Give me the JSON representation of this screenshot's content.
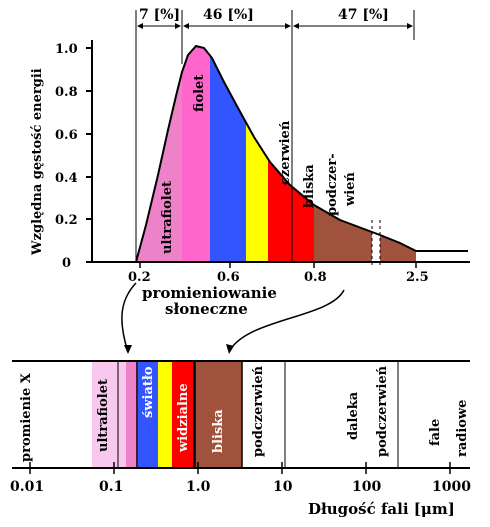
{
  "top_chart": {
    "ylabel": "Względna gęstość energii",
    "y_ticks": [
      "0",
      "0.2",
      "0.4",
      "0.6",
      "0.8",
      "1.0"
    ],
    "x_ticks": [
      "0.2",
      "0.6",
      "0.8",
      "2.5"
    ],
    "percent_labels": [
      "7 [%]",
      "46 [%]",
      "47 [%]"
    ],
    "band_labels": {
      "ultraviolet": "ultrafiolet",
      "violet": "fiolet",
      "red": "czerwień",
      "near": "bliska",
      "infrared_1": "podczer-",
      "infrared_2": "wień"
    },
    "colors": {
      "ultraviolet": "#ee82c8",
      "violet": "#ff66cc",
      "blue": "#3355ff",
      "yellow": "#ffff00",
      "red": "#ff0000",
      "brown": "#a0523d",
      "grey": "#c8c8c8"
    }
  },
  "caption_line1": "promieniowanie",
  "caption_line2": "słoneczne",
  "spectrum": {
    "x_ticks": [
      "0.01",
      "0.1",
      "1.0",
      "10",
      "100",
      "1000"
    ],
    "band_labels": {
      "xray": "promienie X",
      "ultraviolet": "ultrafiolet",
      "light": "światło",
      "visible": "widzialne",
      "near": "bliska",
      "ir_near": "podczerwień",
      "far": "daleka",
      "ir_far": "podczerwień",
      "waves": "fale",
      "radio": "radiowe"
    }
  },
  "xlabel": "Długość fali [μm]"
}
